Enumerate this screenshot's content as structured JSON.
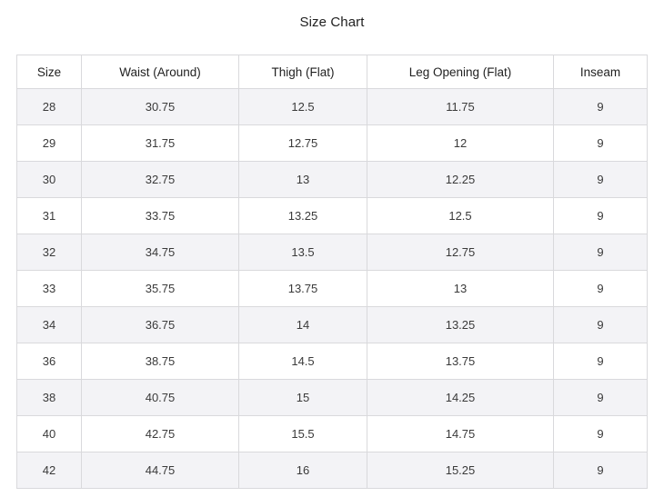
{
  "title": "Size Chart",
  "table": {
    "headers": [
      "Size",
      "Waist (Around)",
      "Thigh (Flat)",
      "Leg Opening (Flat)",
      "Inseam"
    ],
    "rows": [
      [
        "28",
        "30.75",
        "12.5",
        "11.75",
        "9"
      ],
      [
        "29",
        "31.75",
        "12.75",
        "12",
        "9"
      ],
      [
        "30",
        "32.75",
        "13",
        "12.25",
        "9"
      ],
      [
        "31",
        "33.75",
        "13.25",
        "12.5",
        "9"
      ],
      [
        "32",
        "34.75",
        "13.5",
        "12.75",
        "9"
      ],
      [
        "33",
        "35.75",
        "13.75",
        "13",
        "9"
      ],
      [
        "34",
        "36.75",
        "14",
        "13.25",
        "9"
      ],
      [
        "36",
        "38.75",
        "14.5",
        "13.75",
        "9"
      ],
      [
        "38",
        "40.75",
        "15",
        "14.25",
        "9"
      ],
      [
        "40",
        "42.75",
        "15.5",
        "14.75",
        "9"
      ],
      [
        "42",
        "44.75",
        "16",
        "15.25",
        "9"
      ]
    ]
  }
}
